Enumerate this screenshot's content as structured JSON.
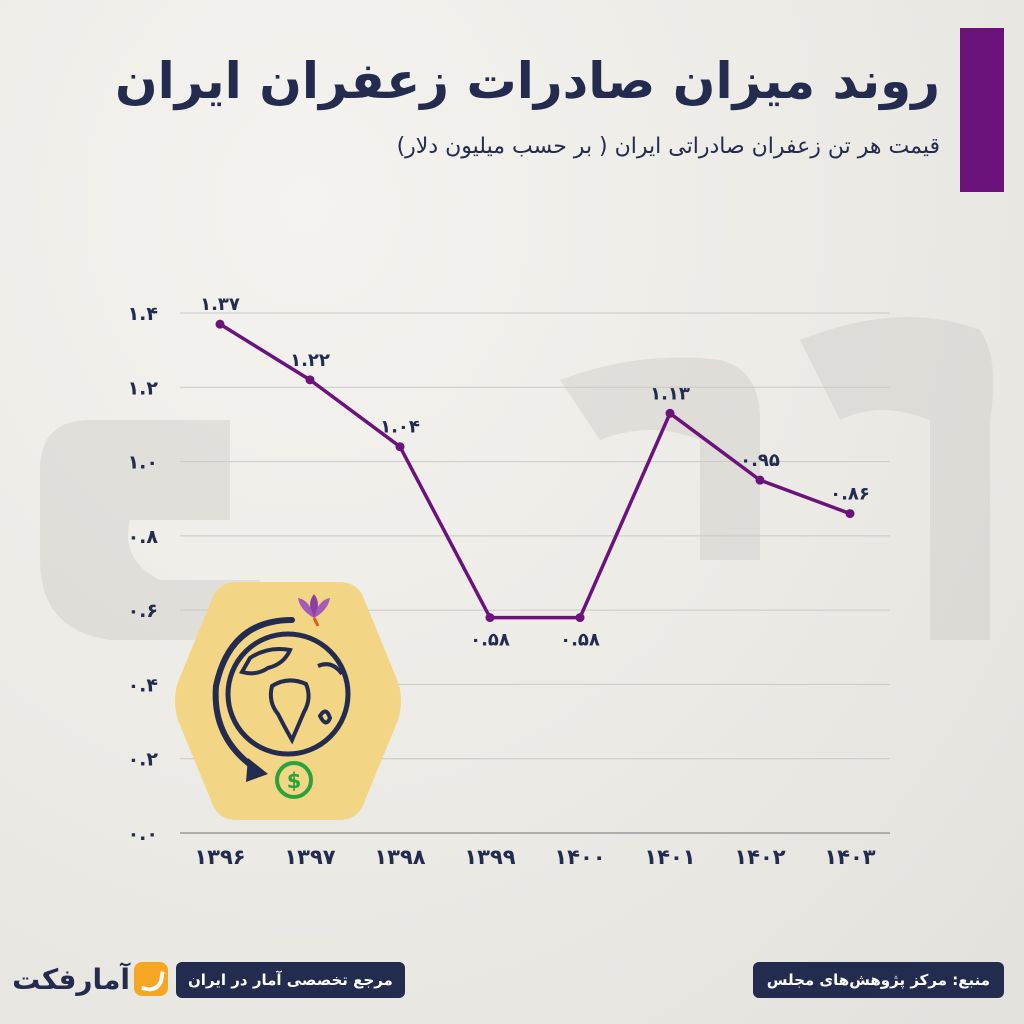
{
  "header": {
    "title": "روند میزان صادرات زعفران ایران",
    "subtitle": "قیمت هر تن زعفران صادراتی ایران ( بر حسب میلیون دلار)"
  },
  "colors": {
    "accent": "#6b137a",
    "line": "#6b137a",
    "text": "#232b4f",
    "grid": "#c9c9c9",
    "emblem_bg": "#f2d585",
    "dollar": "#2aa33a"
  },
  "chart_data": {
    "type": "line",
    "x": [
      "۱۳۹۶",
      "۱۳۹۷",
      "۱۳۹۸",
      "۱۳۹۹",
      "۱۴۰۰",
      "۱۴۰۱",
      "۱۴۰۲",
      "۱۴۰۳"
    ],
    "values": [
      1.37,
      1.22,
      1.04,
      0.58,
      0.58,
      1.13,
      0.95,
      0.86
    ],
    "data_labels": [
      "۱.۳۷",
      "۱.۲۲",
      "۱.۰۴",
      "۰.۵۸",
      "۰.۵۸",
      "۱.۱۳",
      "۰.۹۵",
      "۰.۸۶"
    ],
    "y_ticks": [
      0.0,
      0.2,
      0.4,
      0.6,
      0.8,
      1.0,
      1.2,
      1.4
    ],
    "y_tick_labels": [
      "۰.۰",
      "۰.۲",
      "۰.۴",
      "۰.۶",
      "۰.۸",
      "۱.۰",
      "۱.۲",
      "۱.۴"
    ],
    "ylim": [
      0,
      1.4
    ],
    "grid": true,
    "title": "",
    "xlabel": "",
    "ylabel": ""
  },
  "emblem": {
    "icon": "globe-export-icon"
  },
  "footer": {
    "source": "منبع: مرکز پژوهش‌های مجلس",
    "tagline": "مرجع تخصصی آمار در ایران",
    "logo_text": "آمارفکت"
  }
}
